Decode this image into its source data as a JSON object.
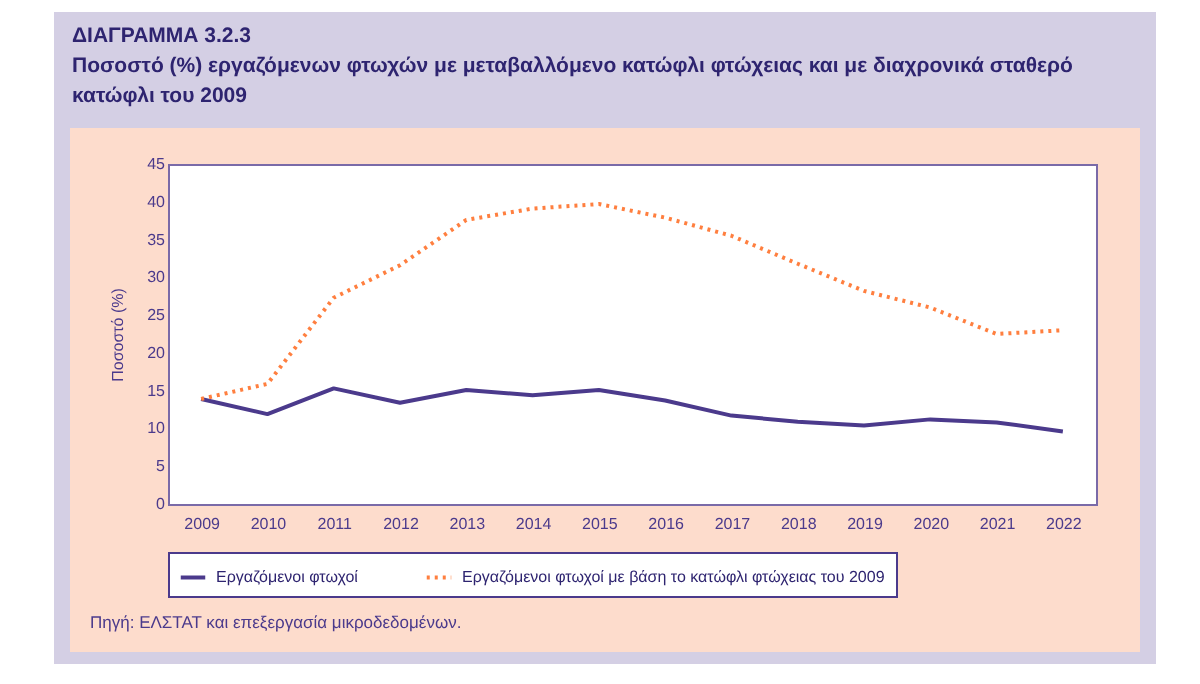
{
  "chart_data": {
    "type": "line",
    "title": "ΔΙΑΓΡΑΜΜΑ 3.2.3",
    "subtitle": "Ποσοστό (%) εργαζόμενων φτωχών με μεταβαλλόμενο κατώφλι φτώχειας και με διαχρονικά σταθερό κατώφλι του 2009",
    "ylabel": "Ποσοστό (%)",
    "categories": [
      "2009",
      "2010",
      "2011",
      "2012",
      "2013",
      "2014",
      "2015",
      "2016",
      "2017",
      "2018",
      "2019",
      "2020",
      "2021",
      "2022"
    ],
    "series": [
      {
        "name": "Εργαζόμενοι φτωχοί",
        "color": "#4b3a8c",
        "line_style": "solid",
        "values": [
          13.9,
          11.9,
          15.3,
          13.4,
          15.1,
          14.4,
          15.1,
          13.7,
          11.7,
          10.9,
          10.4,
          11.2,
          10.8,
          9.6
        ]
      },
      {
        "name": "Εργαζόμενοι φτωχοί με βάση το κατώφλι φτώχειας του 2009",
        "color": "#ff7f3f",
        "line_style": "dotted",
        "values": [
          13.9,
          15.9,
          27.3,
          31.6,
          37.6,
          39.1,
          39.7,
          37.9,
          35.5,
          31.8,
          28.2,
          26.0,
          22.5,
          23.0
        ]
      }
    ],
    "ylim": [
      0,
      45
    ],
    "yticks": [
      0,
      5,
      10,
      15,
      20,
      25,
      30,
      35,
      40,
      45
    ],
    "grid": false,
    "legend": "bottom",
    "annotations": [
      "Πηγή: ΕΛΣΤΑΤ και επεξεργασία μικροδεδομένων."
    ]
  }
}
